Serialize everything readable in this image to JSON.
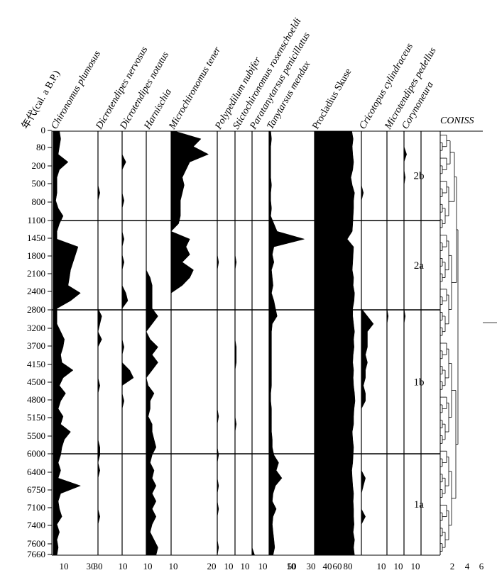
{
  "chart_data": {
    "type": "area",
    "y_axis_label": "年代(cal. a B.P.)",
    "age_ticks": [
      "0",
      "80",
      "200",
      "500",
      "800",
      "1100",
      "1450",
      "1800",
      "2100",
      "2400",
      "2800",
      "3200",
      "3700",
      "4150",
      "4500",
      "4800",
      "5150",
      "5500",
      "6000",
      "6400",
      "6750",
      "7100",
      "7400",
      "7600",
      "7660"
    ],
    "taxa": [
      {
        "name": "Chironomus plumosus",
        "italic": true,
        "xticks": [
          "10",
          "30"
        ],
        "max": 35,
        "values": [
          5,
          6,
          5,
          4,
          12,
          5,
          3,
          3,
          3,
          2,
          4,
          8,
          5,
          3,
          3,
          20,
          18,
          16,
          14,
          13,
          12,
          22,
          14,
          3,
          3,
          3,
          6,
          9,
          8,
          6,
          7,
          16,
          8,
          5,
          10,
          6,
          4,
          8,
          6,
          14,
          9,
          7,
          6,
          4,
          6,
          4,
          22,
          6,
          4,
          5,
          7,
          3,
          5,
          3,
          4,
          3
        ]
      },
      {
        "name": "Dicrotendipes nervosus",
        "italic": true,
        "xticks": [
          "30"
        ],
        "max": 12,
        "values": [
          0,
          0,
          0,
          0,
          0,
          0,
          0,
          0,
          1,
          0,
          0,
          0,
          0,
          0,
          0,
          0,
          0,
          0,
          0,
          0,
          0,
          0,
          0,
          0,
          2,
          1,
          0,
          2,
          0,
          0,
          0,
          0,
          0,
          1,
          0,
          0,
          0,
          0,
          0,
          0,
          0,
          1,
          1,
          0,
          1,
          0,
          0,
          0,
          0,
          0,
          1,
          0,
          0,
          0,
          0,
          0
        ]
      },
      {
        "name": "Dicrotendipes notatus",
        "italic": true,
        "xticks": [
          "10"
        ],
        "max": 12,
        "values": [
          0,
          0,
          0,
          0,
          2,
          0,
          0,
          0,
          0,
          1,
          0,
          0,
          0,
          0,
          1,
          0,
          0,
          1,
          0,
          0,
          0,
          2,
          3,
          0,
          0,
          0,
          0,
          0,
          1,
          0,
          0,
          4,
          6,
          0,
          0,
          1,
          0,
          0,
          0,
          0,
          0,
          0,
          0,
          0,
          0,
          0,
          0,
          0,
          0,
          0,
          0,
          0,
          0,
          0,
          0,
          0
        ]
      },
      {
        "name": "Harnischia",
        "italic": true,
        "xticks": [
          "10"
        ],
        "max": 12,
        "values": [
          0,
          0,
          0,
          0,
          0,
          0,
          0,
          0,
          0,
          0,
          0,
          0,
          0,
          0,
          0,
          0,
          0,
          0,
          0,
          2,
          3,
          3,
          3,
          3,
          6,
          3,
          0,
          2,
          6,
          3,
          6,
          3,
          0,
          1,
          4,
          2,
          2,
          1,
          3,
          3,
          4,
          5,
          3,
          2,
          4,
          3,
          5,
          3,
          5,
          3,
          5,
          3,
          2,
          4,
          6,
          5
        ]
      },
      {
        "name": "Microchironomus tener",
        "italic": true,
        "xticks": [
          "10",
          "20"
        ],
        "max": 24,
        "values": [
          2,
          16,
          12,
          20,
          10,
          8,
          6,
          7,
          6,
          5,
          5,
          5,
          4,
          0,
          10,
          8,
          10,
          6,
          12,
          10,
          6,
          0,
          0,
          0,
          0,
          0,
          0,
          0,
          0,
          0,
          0,
          0,
          0,
          0,
          0,
          0,
          0,
          0,
          0,
          0,
          0,
          0,
          0,
          0,
          0,
          0,
          0,
          0,
          0,
          0,
          0,
          0,
          0,
          0,
          0,
          0
        ]
      },
      {
        "name": "Polypedilum nubifer",
        "italic": true,
        "xticks": [
          "10"
        ],
        "max": 12,
        "values": [
          0,
          0,
          0,
          0,
          0,
          0,
          0,
          0,
          0,
          0,
          0,
          0,
          0,
          0,
          0,
          0,
          0,
          1,
          0,
          0,
          0,
          0,
          0,
          0,
          0,
          0,
          0,
          0,
          0,
          0,
          0,
          0,
          0,
          0,
          0,
          0,
          0,
          1,
          0,
          0,
          0,
          0,
          1,
          0,
          0,
          0,
          1,
          0,
          0,
          1,
          0,
          0,
          0,
          0,
          1,
          0
        ]
      },
      {
        "name": "Stictochironomus rosenschoeldi",
        "italic": true,
        "xticks": [
          "10"
        ],
        "max": 12,
        "values": [
          0,
          0,
          0,
          0,
          0,
          0,
          0,
          0,
          0,
          0,
          0,
          0,
          0,
          0,
          0,
          0,
          0,
          1,
          0,
          0,
          0,
          0,
          0,
          0,
          0,
          0,
          0,
          0,
          1,
          1,
          1,
          0,
          0,
          0,
          0,
          0,
          0,
          0,
          1,
          0,
          0,
          0,
          0,
          0,
          0,
          0,
          0,
          0,
          0,
          0,
          0,
          0,
          0,
          0,
          0,
          0
        ]
      },
      {
        "name": "Paratanytarsus penicillatus",
        "italic": true,
        "xticks": [
          "10"
        ],
        "max": 12,
        "values": [
          0,
          0,
          0,
          0,
          0,
          0,
          0,
          0,
          0,
          0,
          0,
          0,
          0,
          0,
          0,
          0,
          0,
          0,
          0,
          0,
          0,
          0,
          0,
          0,
          0,
          0,
          0,
          0,
          0,
          0,
          0,
          0,
          0,
          0,
          0,
          0,
          0,
          0,
          0,
          0,
          0,
          0,
          0,
          0,
          0,
          0,
          0,
          0,
          0,
          0,
          0,
          0,
          0,
          0,
          0,
          2
        ]
      },
      {
        "name": "Tanytarsus mendax",
        "italic": true,
        "xticks": [
          "10",
          "30",
          "50"
        ],
        "max": 55,
        "values": [
          2,
          3,
          2,
          2,
          2,
          2,
          2,
          3,
          2,
          2,
          3,
          2,
          6,
          10,
          44,
          6,
          4,
          6,
          3,
          4,
          5,
          3,
          6,
          8,
          10,
          4,
          3,
          3,
          3,
          3,
          3,
          3,
          3,
          3,
          2,
          2,
          3,
          3,
          3,
          3,
          4,
          4,
          6,
          12,
          9,
          16,
          8,
          5,
          4,
          9,
          5,
          4,
          5,
          6,
          7,
          5
        ]
      },
      {
        "name": "Procladius Skuse",
        "italic": false,
        "xticks": [
          "40",
          "60",
          "80"
        ],
        "max": 100,
        "values": [
          82,
          85,
          83,
          84,
          86,
          84,
          80,
          83,
          88,
          86,
          86,
          85,
          84,
          83,
          72,
          86,
          85,
          84,
          83,
          86,
          85,
          88,
          87,
          84,
          84,
          86,
          88,
          86,
          87,
          85,
          84,
          86,
          85,
          86,
          88,
          89,
          87,
          86,
          86,
          83,
          84,
          86,
          85,
          84,
          82,
          83,
          84,
          86,
          85,
          86,
          86,
          87,
          85,
          88,
          86,
          88
        ]
      },
      {
        "name": "Cricotopus cylindraceus",
        "italic": true,
        "xticks": [],
        "max": 12,
        "values": [
          0,
          0,
          0,
          0,
          0,
          0,
          0,
          0,
          1,
          0,
          0,
          0,
          0,
          0,
          0,
          0,
          0,
          0,
          0,
          0,
          0,
          0,
          0,
          0,
          3,
          6,
          3,
          3,
          3,
          2,
          3,
          2,
          2,
          1,
          2,
          2,
          0,
          0,
          0,
          0,
          0,
          0,
          0,
          0,
          0,
          2,
          1,
          0,
          0,
          0,
          2,
          0,
          0,
          0,
          0,
          0
        ]
      },
      {
        "name": "Microtendipes pedellus",
        "italic": true,
        "xticks": [
          "10"
        ],
        "max": 12,
        "values": [
          0,
          0,
          0,
          0,
          0,
          0,
          0,
          0,
          0,
          0,
          0,
          0,
          0,
          0,
          0,
          0,
          0,
          0,
          0,
          0,
          0,
          0,
          0,
          0,
          1,
          0,
          0,
          0,
          0,
          0,
          0,
          0,
          0,
          0,
          0,
          0,
          0,
          0,
          0,
          0,
          0,
          0,
          0,
          0,
          0,
          0,
          0,
          0,
          0,
          0,
          0,
          0,
          0,
          0,
          0,
          0
        ]
      },
      {
        "name": "Corynoneura",
        "italic": true,
        "xticks": [
          "10",
          "10"
        ],
        "max": 12,
        "values": [
          0,
          0,
          0,
          2,
          0,
          0,
          1,
          0,
          0,
          0,
          0,
          0,
          0,
          0,
          0,
          0,
          0,
          0,
          0,
          0,
          0,
          0,
          0,
          0,
          1,
          0,
          0,
          0,
          0,
          0,
          0,
          0,
          0,
          0,
          0,
          0,
          0,
          0,
          0,
          0,
          0,
          0,
          0,
          0,
          0,
          0,
          0,
          0,
          0,
          0,
          0,
          0,
          0,
          0,
          0,
          0
        ]
      }
    ],
    "zones": [
      {
        "label": "2b",
        "from": 0,
        "to": 5
      },
      {
        "label": "2a",
        "from": 5,
        "to": 10
      },
      {
        "label": "1b",
        "from": 10,
        "to": 18
      },
      {
        "label": "1a",
        "from": 18,
        "to": 24
      }
    ],
    "coniss": {
      "label": "CONISS",
      "xticks": [
        "2",
        "4",
        "6"
      ]
    }
  }
}
